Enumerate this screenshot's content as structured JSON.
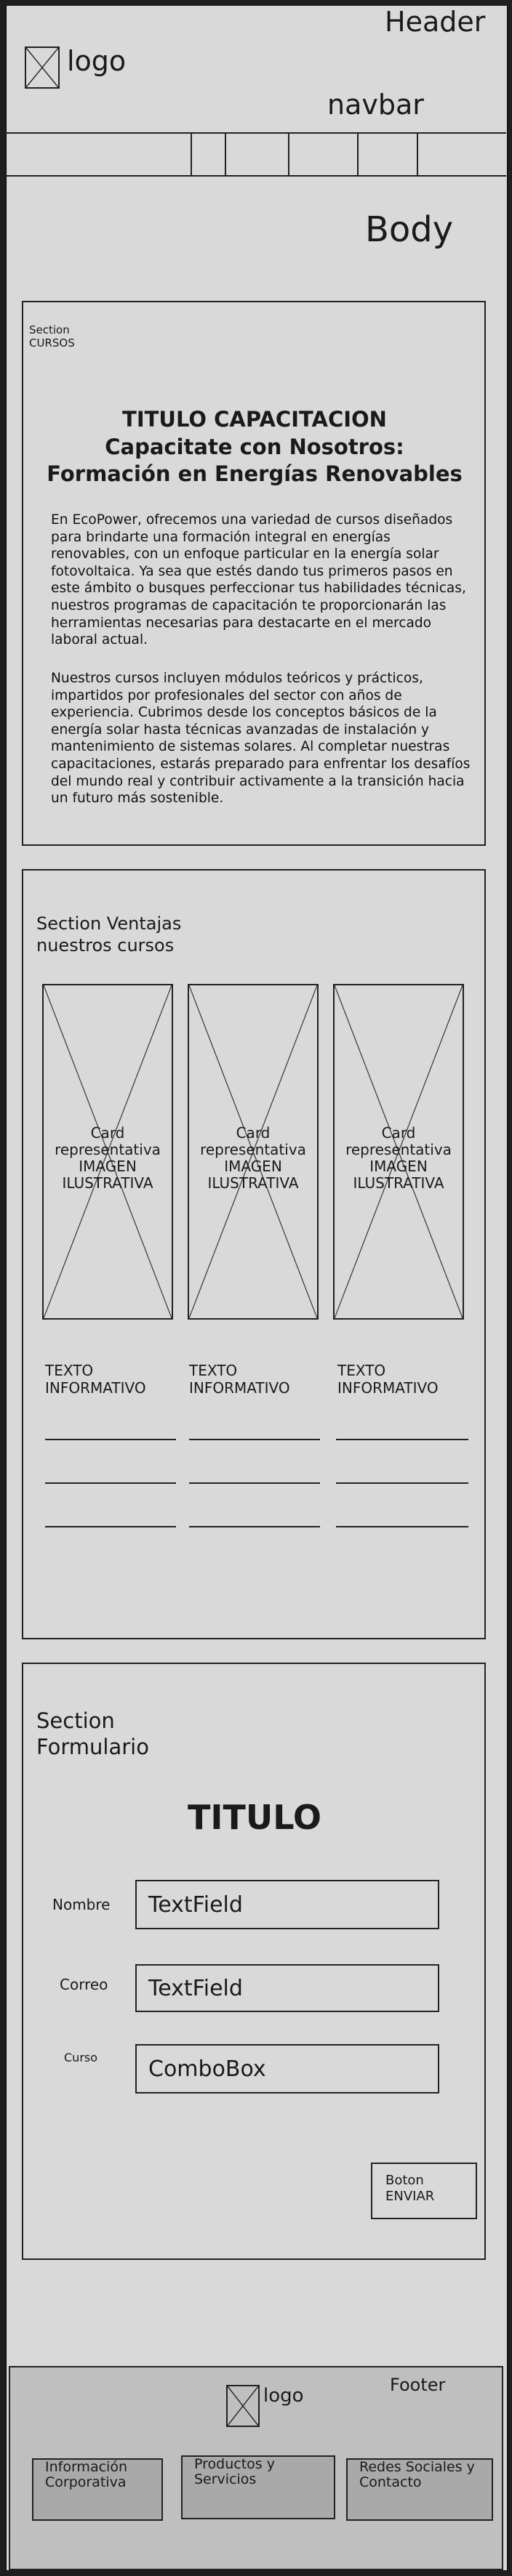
{
  "header": {
    "label": "Header",
    "logo": "logo",
    "nav_label": "navbar",
    "nav_items": [
      "",
      "",
      "",
      "",
      "",
      ""
    ]
  },
  "body": {
    "label": "Body"
  },
  "courses": {
    "section_label_line1": "Section",
    "section_label_line2": "CURSOS",
    "title": "TITULO CAPACITACION",
    "subtitle": "Capacitate con Nosotros: Formación en Energías Renovables",
    "paragraph1": "En EcoPower, ofrecemos una variedad de cursos diseñados para brindarte una formación integral en energías renovables, con un enfoque particular en la energía solar fotovoltaica. Ya sea que estés dando tus primeros pasos en este ámbito o busques perfeccionar tus habilidades técnicas, nuestros programas de capacitación te proporcionarán las herramientas necesarias para destacarte en el mercado laboral actual.",
    "paragraph2": "Nuestros cursos incluyen módulos teóricos y prácticos, impartidos por profesionales del sector con años de experiencia. Cubrimos desde los conceptos básicos de la energía solar hasta técnicas avanzadas de instalación y mantenimiento de sistemas solares. Al completar nuestras capacitaciones, estarás preparado para enfrentar los desafíos del mundo real y contribuir activamente a la transición hacia un futuro más sostenible."
  },
  "advantages": {
    "section_label": "Section Ventajas nuestros cursos",
    "cards": [
      {
        "image_text": "Card representativa IMAGEN ILUSTRATIVA",
        "info": "TEXTO INFORMATIVO"
      },
      {
        "image_text": "Card representativa IMAGEN ILUSTRATIVA",
        "info": "TEXTO INFORMATIVO"
      },
      {
        "image_text": "Card representativa IMAGEN ILUSTRATIVA",
        "info": "TEXTO INFORMATIVO"
      }
    ]
  },
  "form": {
    "section_label": "Section Formulario",
    "title": "TITULO",
    "fields": [
      {
        "label": "Nombre",
        "value": "TextField"
      },
      {
        "label": "Correo",
        "value": "TextField"
      },
      {
        "label": "Curso",
        "value": "ComboBox"
      }
    ],
    "submit": "Boton ENVIAR"
  },
  "footer": {
    "label": "Footer",
    "logo": "logo",
    "buttons": [
      "Información Corporativa",
      "Productos y Servicios",
      "Redes Sociales y Contacto"
    ]
  }
}
